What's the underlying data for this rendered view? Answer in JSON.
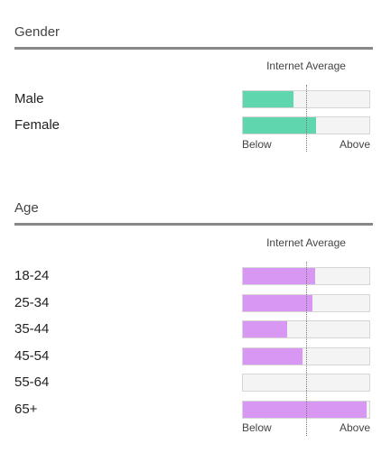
{
  "chart_data": [
    {
      "type": "bar",
      "orientation": "horizontal",
      "title": "Gender",
      "legend_label": "Internet Average",
      "axis_left_label": "Below",
      "axis_right_label": "Above",
      "xlim": [
        0,
        100
      ],
      "reference_value": 50,
      "color": "#5fd6ae",
      "categories": [
        "Male",
        "Female"
      ],
      "values": [
        40,
        58
      ]
    },
    {
      "type": "bar",
      "orientation": "horizontal",
      "title": "Age",
      "legend_label": "Internet Average",
      "axis_left_label": "Below",
      "axis_right_label": "Above",
      "xlim": [
        0,
        100
      ],
      "reference_value": 50,
      "color": "#d997f4",
      "categories": [
        "18-24",
        "25-34",
        "35-44",
        "45-54",
        "55-64",
        "65+"
      ],
      "values": [
        57,
        55,
        35,
        47,
        0,
        98
      ]
    }
  ]
}
